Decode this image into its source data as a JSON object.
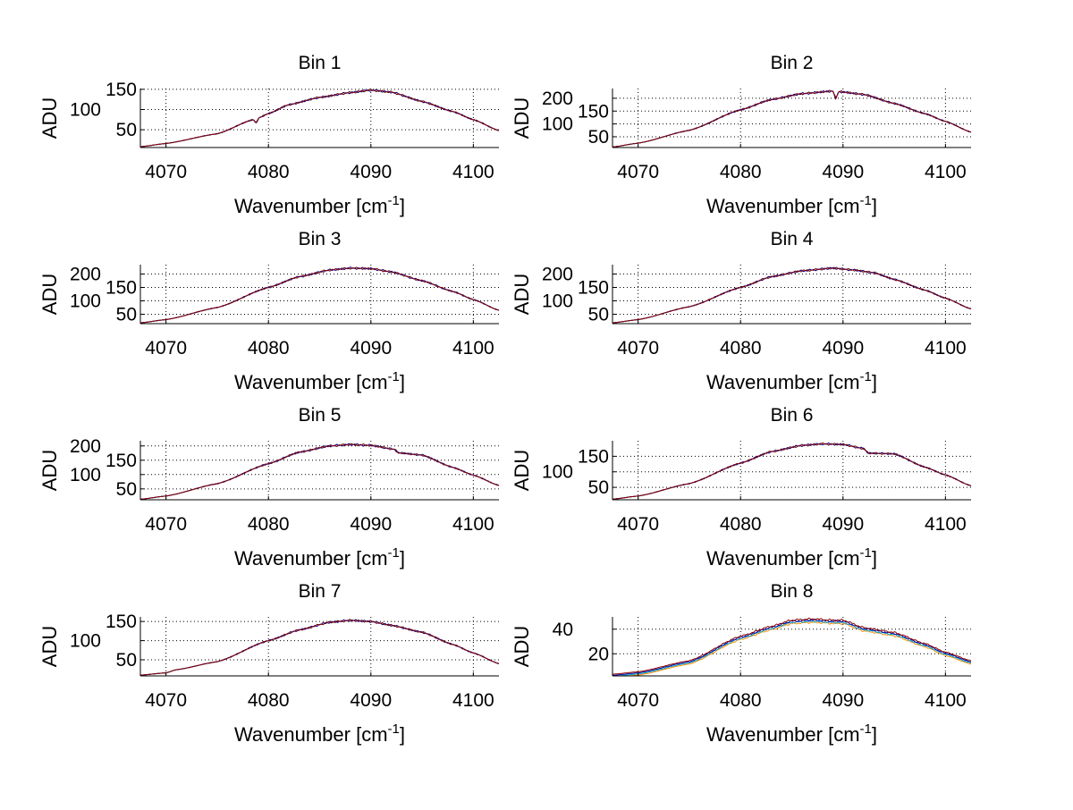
{
  "chart_data": [
    {
      "type": "line",
      "title": "Bin 1",
      "xlabel": "Wavenumber [cm",
      "xlabel_sup": "-1",
      "xlabel_end": "]",
      "ylabel": "ADU",
      "xlim": [
        4067.5,
        4102.5
      ],
      "ylim": [
        6,
        152
      ],
      "xticks": [
        4070,
        4080,
        4090,
        4100
      ],
      "yticks": [
        50,
        100,
        150
      ],
      "grid": true,
      "x": [
        4067.5,
        4070,
        4075,
        4078.5,
        4078.8,
        4079.1,
        4080,
        4082,
        4085,
        4088,
        4090,
        4092,
        4095,
        4098,
        4100,
        4102.5
      ],
      "y": [
        8,
        16,
        40,
        75,
        67,
        80,
        90,
        112,
        130,
        142,
        148,
        143,
        120,
        95,
        75,
        48
      ]
    },
    {
      "type": "line",
      "title": "Bin 2",
      "xlabel": "Wavenumber [cm",
      "xlabel_sup": "-1",
      "xlabel_end": "]",
      "ylabel": "ADU",
      "xlim": [
        4067.5,
        4102.5
      ],
      "ylim": [
        8,
        238
      ],
      "xticks": [
        4070,
        4080,
        4090,
        4100
      ],
      "yticks": [
        50,
        100,
        150,
        200
      ],
      "grid": true,
      "x": [
        4067.5,
        4070,
        4075,
        4080,
        4083,
        4086,
        4089,
        4089.3,
        4089.6,
        4092,
        4095,
        4098,
        4100,
        4102.5
      ],
      "y": [
        10,
        25,
        75,
        155,
        195,
        218,
        228,
        200,
        226,
        215,
        180,
        140,
        110,
        68
      ]
    },
    {
      "type": "line",
      "title": "Bin 3",
      "xlabel": "Wavenumber [cm",
      "xlabel_sup": "-1",
      "xlabel_end": "]",
      "ylabel": "ADU",
      "xlim": [
        4067.5,
        4102.5
      ],
      "ylim": [
        15,
        235
      ],
      "xticks": [
        4070,
        4080,
        4090,
        4100
      ],
      "yticks": [
        50,
        100,
        150,
        200
      ],
      "grid": true,
      "x": [
        4067.5,
        4070,
        4075,
        4080,
        4083,
        4086,
        4088,
        4090,
        4092,
        4095,
        4098,
        4100,
        4102.5
      ],
      "y": [
        18,
        30,
        75,
        150,
        190,
        215,
        222,
        220,
        208,
        175,
        135,
        105,
        65
      ]
    },
    {
      "type": "line",
      "title": "Bin 4",
      "xlabel": "Wavenumber [cm",
      "xlabel_sup": "-1",
      "xlabel_end": "]",
      "ylabel": "ADU",
      "xlim": [
        4067.5,
        4102.5
      ],
      "ylim": [
        15,
        235
      ],
      "xticks": [
        4070,
        4080,
        4090,
        4100
      ],
      "yticks": [
        50,
        100,
        150,
        200
      ],
      "grid": true,
      "x": [
        4067.5,
        4070,
        4075,
        4080,
        4083,
        4086,
        4089,
        4091,
        4093,
        4095,
        4098,
        4100,
        4102.5
      ],
      "y": [
        18,
        30,
        78,
        150,
        190,
        212,
        222,
        215,
        205,
        180,
        140,
        110,
        70
      ]
    },
    {
      "type": "line",
      "title": "Bin 5",
      "xlabel": "Wavenumber [cm",
      "xlabel_sup": "-1",
      "xlabel_end": "]",
      "ylabel": "ADU",
      "xlim": [
        4067.5,
        4102.5
      ],
      "ylim": [
        12,
        218
      ],
      "xticks": [
        4070,
        4080,
        4090,
        4100
      ],
      "yticks": [
        50,
        100,
        150,
        200
      ],
      "grid": true,
      "x": [
        4067.5,
        4070,
        4075,
        4080,
        4083,
        4086,
        4088,
        4090,
        4092.3,
        4092.7,
        4095,
        4098,
        4100,
        4102.5
      ],
      "y": [
        14,
        25,
        68,
        138,
        178,
        200,
        205,
        202,
        188,
        176,
        168,
        125,
        98,
        62
      ]
    },
    {
      "type": "line",
      "title": "Bin 6",
      "xlabel": "Wavenumber [cm",
      "xlabel_sup": "-1",
      "xlabel_end": "]",
      "ylabel": "ADU",
      "xlim": [
        4067.5,
        4102.5
      ],
      "ylim": [
        10,
        200
      ],
      "xticks": [
        4070,
        4080,
        4090,
        4100
      ],
      "yticks": [
        50,
        100,
        150
      ],
      "grid": true,
      "x": [
        4067.5,
        4070,
        4075,
        4080,
        4083,
        4086,
        4088,
        4090,
        4092,
        4092.5,
        4095,
        4098,
        4100,
        4102.5
      ],
      "y": [
        12,
        22,
        62,
        128,
        165,
        185,
        190,
        188,
        175,
        160,
        158,
        115,
        90,
        55
      ]
    },
    {
      "type": "line",
      "title": "Bin 7",
      "xlabel": "Wavenumber [cm",
      "xlabel_sup": "-1",
      "xlabel_end": "]",
      "ylabel": "ADU",
      "xlim": [
        4067.5,
        4102.5
      ],
      "ylim": [
        8,
        162
      ],
      "xticks": [
        4070,
        4080,
        4090,
        4100
      ],
      "yticks": [
        50,
        100,
        150
      ],
      "grid": true,
      "x": [
        4067.5,
        4070,
        4071,
        4075,
        4080,
        4083,
        4086,
        4088,
        4090,
        4092,
        4095,
        4098,
        4100,
        4102.5
      ],
      "y": [
        10,
        16,
        24,
        45,
        100,
        128,
        148,
        153,
        150,
        140,
        122,
        90,
        68,
        40
      ]
    },
    {
      "type": "line",
      "title": "Bin 8",
      "xlabel": "Wavenumber [cm",
      "xlabel_sup": "-1",
      "xlabel_end": "]",
      "ylabel": "ADU",
      "xlim": [
        4067.5,
        4102.5
      ],
      "ylim": [
        2,
        50
      ],
      "xticks": [
        4070,
        4080,
        4090,
        4100
      ],
      "yticks": [
        20,
        40
      ],
      "grid": true,
      "x": [
        4067.5,
        4070,
        4075,
        4080,
        4083,
        4085,
        4087,
        4089,
        4090,
        4092,
        4095,
        4098,
        4100,
        4102.5
      ],
      "y": [
        2,
        4,
        13,
        33,
        41,
        46,
        47,
        46,
        46,
        40,
        36,
        27,
        20,
        13
      ]
    }
  ],
  "series_colors": [
    "#ff8c00",
    "#00a0c0",
    "#0000a0",
    "#8b0000"
  ]
}
